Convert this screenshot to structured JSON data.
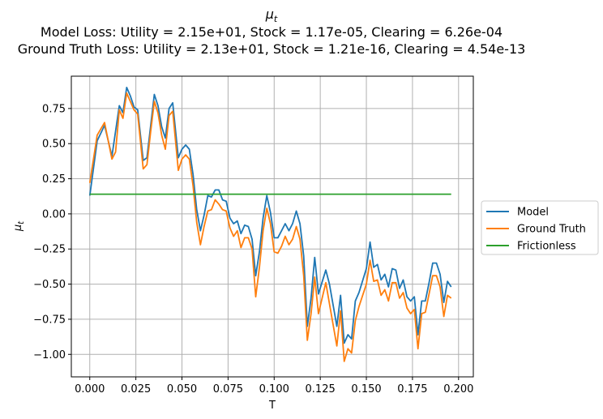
{
  "chart_data": {
    "type": "line",
    "title": "μ_t",
    "title_lines": [
      "Model Loss: Utility = 2.15e+01, Stock = 1.17e-05, Clearing = 6.26e-04",
      "Ground Truth Loss: Utility = 2.13e+01, Stock = 1.21e-16, Clearing = 4.54e-13"
    ],
    "xlabel": "T",
    "ylabel": "μ_t",
    "xlim": [
      -0.01,
      0.208
    ],
    "ylim": [
      -1.16,
      0.98
    ],
    "x_ticks": [
      0.0,
      0.025,
      0.05,
      0.075,
      0.1,
      0.125,
      0.15,
      0.175,
      0.2
    ],
    "x_tick_labels": [
      "0.000",
      "0.025",
      "0.050",
      "0.075",
      "0.100",
      "0.125",
      "0.150",
      "0.175",
      "0.200"
    ],
    "y_ticks": [
      0.75,
      0.5,
      0.25,
      0.0,
      -0.25,
      -0.5,
      -0.75,
      -1.0
    ],
    "y_tick_labels": [
      "0.75",
      "0.50",
      "0.25",
      "0.00",
      "−0.25",
      "−0.50",
      "−0.75",
      "−1.00"
    ],
    "grid": true,
    "legend_position": "right, outside plot",
    "series": [
      {
        "name": "Model",
        "color": "#1f77b4",
        "points": [
          [
            0.0,
            0.13
          ],
          [
            0.004,
            0.52
          ],
          [
            0.008,
            0.63
          ],
          [
            0.012,
            0.41
          ],
          [
            0.016,
            0.77
          ],
          [
            0.018,
            0.72
          ],
          [
            0.02,
            0.9
          ],
          [
            0.022,
            0.84
          ],
          [
            0.024,
            0.76
          ],
          [
            0.026,
            0.74
          ],
          [
            0.029,
            0.38
          ],
          [
            0.031,
            0.4
          ],
          [
            0.035,
            0.85
          ],
          [
            0.037,
            0.77
          ],
          [
            0.039,
            0.62
          ],
          [
            0.041,
            0.54
          ],
          [
            0.043,
            0.75
          ],
          [
            0.045,
            0.79
          ],
          [
            0.048,
            0.4
          ],
          [
            0.05,
            0.46
          ],
          [
            0.052,
            0.49
          ],
          [
            0.054,
            0.46
          ],
          [
            0.056,
            0.28
          ],
          [
            0.058,
            0.03
          ],
          [
            0.06,
            -0.12
          ],
          [
            0.062,
            -0.01
          ],
          [
            0.064,
            0.13
          ],
          [
            0.066,
            0.12
          ],
          [
            0.068,
            0.17
          ],
          [
            0.07,
            0.17
          ],
          [
            0.072,
            0.1
          ],
          [
            0.074,
            0.09
          ],
          [
            0.076,
            -0.03
          ],
          [
            0.078,
            -0.07
          ],
          [
            0.08,
            -0.05
          ],
          [
            0.082,
            -0.14
          ],
          [
            0.084,
            -0.08
          ],
          [
            0.086,
            -0.09
          ],
          [
            0.088,
            -0.18
          ],
          [
            0.09,
            -0.44
          ],
          [
            0.092,
            -0.27
          ],
          [
            0.094,
            -0.03
          ],
          [
            0.096,
            0.13
          ],
          [
            0.098,
            0.01
          ],
          [
            0.1,
            -0.17
          ],
          [
            0.102,
            -0.17
          ],
          [
            0.104,
            -0.12
          ],
          [
            0.106,
            -0.07
          ],
          [
            0.108,
            -0.12
          ],
          [
            0.11,
            -0.07
          ],
          [
            0.112,
            0.02
          ],
          [
            0.114,
            -0.07
          ],
          [
            0.116,
            -0.3
          ],
          [
            0.118,
            -0.8
          ],
          [
            0.12,
            -0.6
          ],
          [
            0.122,
            -0.31
          ],
          [
            0.124,
            -0.57
          ],
          [
            0.128,
            -0.4
          ],
          [
            0.13,
            -0.5
          ],
          [
            0.134,
            -0.8
          ],
          [
            0.136,
            -0.58
          ],
          [
            0.138,
            -0.92
          ],
          [
            0.14,
            -0.86
          ],
          [
            0.142,
            -0.89
          ],
          [
            0.144,
            -0.62
          ],
          [
            0.146,
            -0.56
          ],
          [
            0.15,
            -0.39
          ],
          [
            0.152,
            -0.2
          ],
          [
            0.154,
            -0.38
          ],
          [
            0.156,
            -0.36
          ],
          [
            0.158,
            -0.47
          ],
          [
            0.16,
            -0.43
          ],
          [
            0.162,
            -0.52
          ],
          [
            0.164,
            -0.39
          ],
          [
            0.166,
            -0.4
          ],
          [
            0.168,
            -0.53
          ],
          [
            0.17,
            -0.47
          ],
          [
            0.172,
            -0.59
          ],
          [
            0.174,
            -0.62
          ],
          [
            0.176,
            -0.59
          ],
          [
            0.178,
            -0.86
          ],
          [
            0.18,
            -0.62
          ],
          [
            0.182,
            -0.62
          ],
          [
            0.184,
            -0.49
          ],
          [
            0.186,
            -0.35
          ],
          [
            0.188,
            -0.35
          ],
          [
            0.19,
            -0.43
          ],
          [
            0.192,
            -0.63
          ],
          [
            0.194,
            -0.48
          ],
          [
            0.196,
            -0.52
          ]
        ]
      },
      {
        "name": "Ground Truth",
        "color": "#ff7f0e",
        "points": [
          [
            0.0,
            0.22
          ],
          [
            0.004,
            0.56
          ],
          [
            0.008,
            0.65
          ],
          [
            0.012,
            0.39
          ],
          [
            0.014,
            0.44
          ],
          [
            0.016,
            0.74
          ],
          [
            0.018,
            0.68
          ],
          [
            0.02,
            0.86
          ],
          [
            0.022,
            0.8
          ],
          [
            0.024,
            0.74
          ],
          [
            0.026,
            0.71
          ],
          [
            0.029,
            0.32
          ],
          [
            0.031,
            0.35
          ],
          [
            0.033,
            0.58
          ],
          [
            0.035,
            0.8
          ],
          [
            0.037,
            0.72
          ],
          [
            0.039,
            0.56
          ],
          [
            0.041,
            0.46
          ],
          [
            0.043,
            0.7
          ],
          [
            0.045,
            0.73
          ],
          [
            0.048,
            0.31
          ],
          [
            0.05,
            0.39
          ],
          [
            0.052,
            0.42
          ],
          [
            0.054,
            0.39
          ],
          [
            0.056,
            0.2
          ],
          [
            0.058,
            -0.06
          ],
          [
            0.06,
            -0.22
          ],
          [
            0.062,
            -0.09
          ],
          [
            0.064,
            0.02
          ],
          [
            0.066,
            0.03
          ],
          [
            0.068,
            0.1
          ],
          [
            0.07,
            0.07
          ],
          [
            0.072,
            0.03
          ],
          [
            0.074,
            0.02
          ],
          [
            0.076,
            -0.1
          ],
          [
            0.078,
            -0.16
          ],
          [
            0.08,
            -0.12
          ],
          [
            0.082,
            -0.24
          ],
          [
            0.084,
            -0.17
          ],
          [
            0.086,
            -0.17
          ],
          [
            0.088,
            -0.25
          ],
          [
            0.09,
            -0.59
          ],
          [
            0.092,
            -0.38
          ],
          [
            0.094,
            -0.12
          ],
          [
            0.096,
            0.04
          ],
          [
            0.098,
            -0.07
          ],
          [
            0.1,
            -0.27
          ],
          [
            0.102,
            -0.28
          ],
          [
            0.104,
            -0.23
          ],
          [
            0.106,
            -0.16
          ],
          [
            0.108,
            -0.22
          ],
          [
            0.11,
            -0.18
          ],
          [
            0.112,
            -0.09
          ],
          [
            0.114,
            -0.18
          ],
          [
            0.116,
            -0.44
          ],
          [
            0.118,
            -0.9
          ],
          [
            0.12,
            -0.71
          ],
          [
            0.122,
            -0.45
          ],
          [
            0.124,
            -0.71
          ],
          [
            0.128,
            -0.49
          ],
          [
            0.13,
            -0.64
          ],
          [
            0.134,
            -0.94
          ],
          [
            0.136,
            -0.69
          ],
          [
            0.138,
            -1.05
          ],
          [
            0.14,
            -0.96
          ],
          [
            0.142,
            -0.99
          ],
          [
            0.144,
            -0.76
          ],
          [
            0.146,
            -0.66
          ],
          [
            0.15,
            -0.5
          ],
          [
            0.152,
            -0.33
          ],
          [
            0.154,
            -0.48
          ],
          [
            0.156,
            -0.47
          ],
          [
            0.158,
            -0.58
          ],
          [
            0.16,
            -0.54
          ],
          [
            0.162,
            -0.62
          ],
          [
            0.164,
            -0.49
          ],
          [
            0.166,
            -0.49
          ],
          [
            0.168,
            -0.6
          ],
          [
            0.17,
            -0.56
          ],
          [
            0.172,
            -0.67
          ],
          [
            0.174,
            -0.71
          ],
          [
            0.176,
            -0.68
          ],
          [
            0.178,
            -0.96
          ],
          [
            0.18,
            -0.71
          ],
          [
            0.182,
            -0.7
          ],
          [
            0.184,
            -0.57
          ],
          [
            0.186,
            -0.44
          ],
          [
            0.188,
            -0.44
          ],
          [
            0.19,
            -0.52
          ],
          [
            0.192,
            -0.73
          ],
          [
            0.194,
            -0.58
          ],
          [
            0.196,
            -0.6
          ]
        ]
      },
      {
        "name": "Frictionless",
        "color": "#2ca02c",
        "points": [
          [
            0.0,
            0.14
          ],
          [
            0.196,
            0.14
          ]
        ]
      }
    ]
  }
}
